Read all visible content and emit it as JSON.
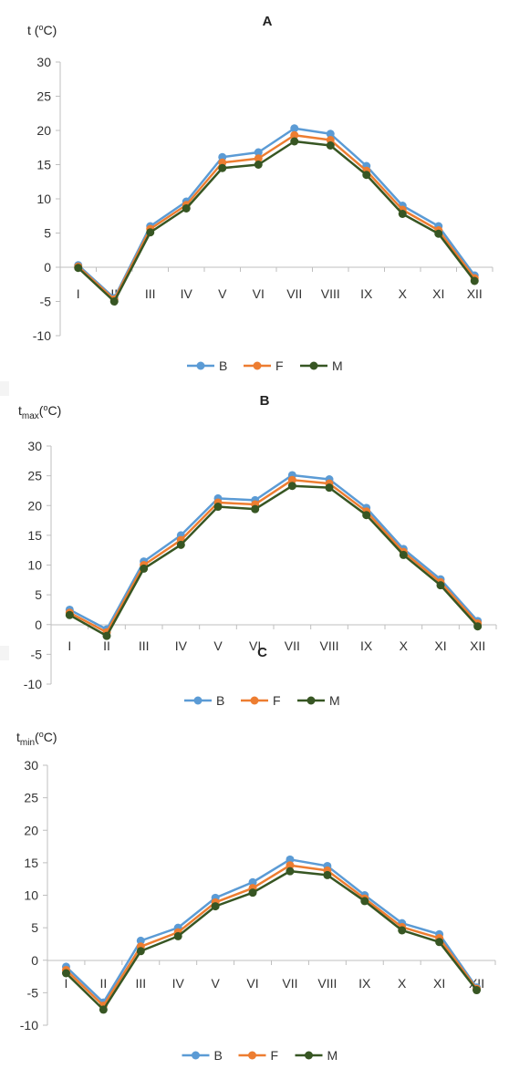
{
  "chart_data": [
    {
      "type": "line",
      "title": "A",
      "ylabel_main": "t (",
      "ylabel_sup": "o",
      "ylabel_tail": "C)",
      "ylabel_sub": "",
      "ylim": [
        -10,
        30
      ],
      "yticks": [
        -10,
        -5,
        0,
        5,
        10,
        15,
        20,
        25,
        30
      ],
      "categories": [
        "I",
        "II",
        "III",
        "IV",
        "V",
        "VI",
        "VII",
        "VIII",
        "IX",
        "X",
        "XI",
        "XII"
      ],
      "grid": false,
      "legend": "bottom",
      "series": [
        {
          "name": "B",
          "color": "#5b9bd5",
          "values": [
            0.3,
            -4.5,
            6.0,
            9.6,
            16.1,
            16.8,
            20.3,
            19.5,
            14.8,
            9.0,
            6.0,
            -1.2
          ]
        },
        {
          "name": "F",
          "color": "#ed7d31",
          "values": [
            0.1,
            -4.7,
            5.6,
            9.1,
            15.3,
            15.9,
            19.3,
            18.6,
            14.1,
            8.4,
            5.4,
            -1.6
          ]
        },
        {
          "name": "M",
          "color": "#375623",
          "values": [
            -0.1,
            -5.0,
            5.1,
            8.6,
            14.5,
            15.0,
            18.4,
            17.8,
            13.5,
            7.8,
            4.9,
            -2.0
          ]
        }
      ]
    },
    {
      "type": "line",
      "title": "B",
      "ylabel_main": "t",
      "ylabel_sub": "max",
      "ylabel_sup": "o",
      "ylabel_tail": "C)",
      "ylabel_open": "(",
      "ylim": [
        -10,
        30
      ],
      "yticks": [
        -10,
        -5,
        0,
        5,
        10,
        15,
        20,
        25,
        30
      ],
      "categories": [
        "I",
        "II",
        "III",
        "IV",
        "V",
        "VI",
        "VII",
        "VIII",
        "IX",
        "X",
        "XI",
        "XII"
      ],
      "grid": false,
      "legend": "bottom",
      "series": [
        {
          "name": "B",
          "color": "#5b9bd5",
          "values": [
            2.5,
            -0.8,
            10.6,
            15.0,
            21.2,
            20.9,
            25.1,
            24.4,
            19.6,
            12.7,
            7.6,
            0.6
          ]
        },
        {
          "name": "F",
          "color": "#ed7d31",
          "values": [
            2.0,
            -1.3,
            10.0,
            14.2,
            20.5,
            20.2,
            24.3,
            23.7,
            19.0,
            12.2,
            7.1,
            0.2
          ]
        },
        {
          "name": "M",
          "color": "#375623",
          "values": [
            1.6,
            -1.9,
            9.4,
            13.4,
            19.8,
            19.4,
            23.3,
            23.0,
            18.4,
            11.7,
            6.6,
            -0.3
          ]
        }
      ]
    },
    {
      "type": "line",
      "title": "C",
      "ylabel_main": "t",
      "ylabel_sub": "min",
      "ylabel_sup": "o",
      "ylabel_tail": "C)",
      "ylabel_open": "(",
      "ylim": [
        -10,
        30
      ],
      "yticks": [
        -10,
        -5,
        0,
        5,
        10,
        15,
        20,
        25,
        30
      ],
      "categories": [
        "I",
        "II",
        "III",
        "IV",
        "V",
        "VI",
        "VII",
        "VIII",
        "IX",
        "X",
        "XI",
        "XII"
      ],
      "grid": false,
      "legend": "bottom",
      "series": [
        {
          "name": "B",
          "color": "#5b9bd5",
          "values": [
            -1.0,
            -6.5,
            3.0,
            5.0,
            9.6,
            12.0,
            15.5,
            14.5,
            10.0,
            5.7,
            4.0,
            -4.2
          ]
        },
        {
          "name": "F",
          "color": "#ed7d31",
          "values": [
            -1.5,
            -7.0,
            2.1,
            4.3,
            8.9,
            11.1,
            14.6,
            13.8,
            9.5,
            5.1,
            3.4,
            -4.4
          ]
        },
        {
          "name": "M",
          "color": "#375623",
          "values": [
            -2.0,
            -7.6,
            1.4,
            3.7,
            8.3,
            10.4,
            13.7,
            13.1,
            9.1,
            4.6,
            2.8,
            -4.6
          ]
        }
      ]
    }
  ]
}
